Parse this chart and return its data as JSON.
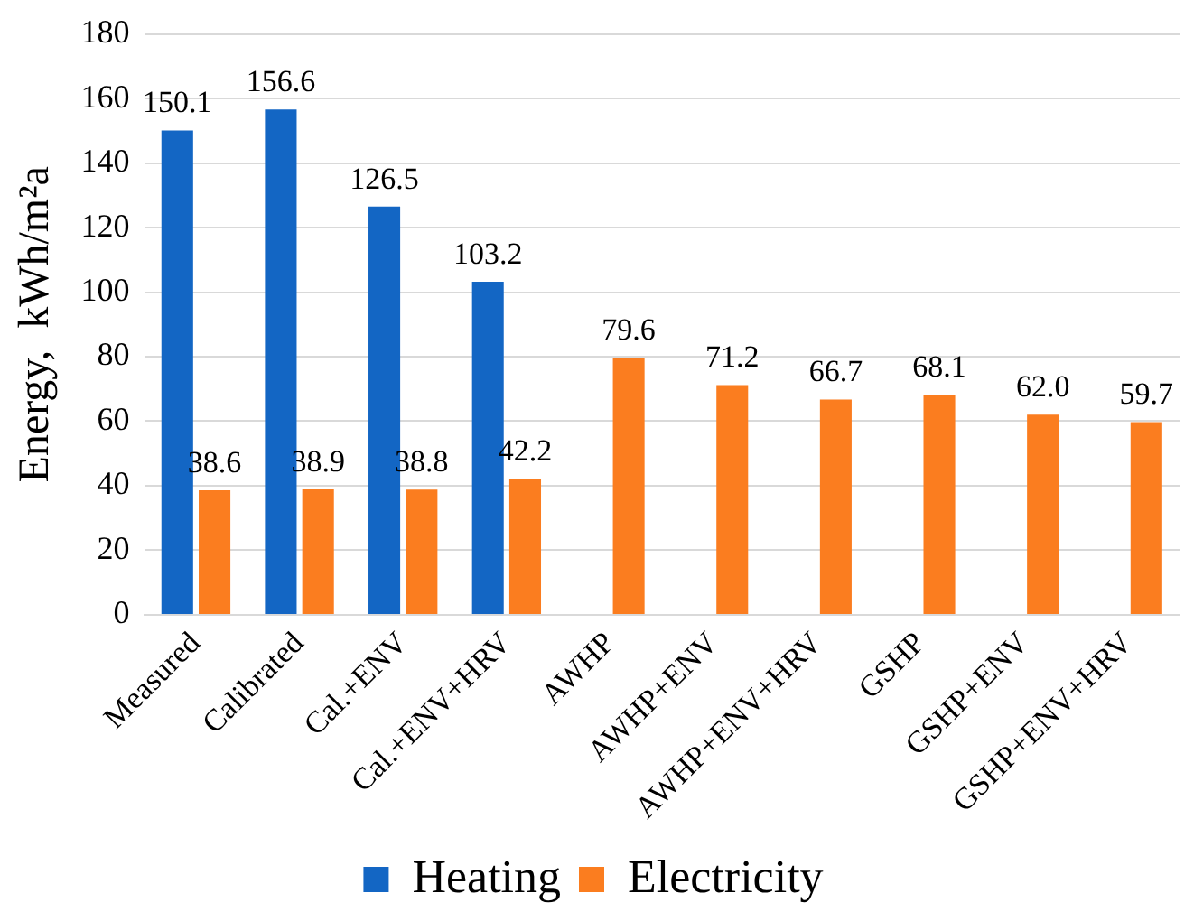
{
  "chart_data": {
    "type": "bar",
    "ylabel": "Energy,  kWh/m²a",
    "categories": [
      "Measured",
      "Calibrated",
      "Cal.+ENV",
      "Cal.+ENV+HRV",
      "AWHP",
      "AWHP+ENV",
      "AWHP+ENV+HRV",
      "GSHP",
      "GSHP+ENV",
      "GSHP+ENV+HRV"
    ],
    "series": [
      {
        "name": "Heating",
        "color": "#1366c4",
        "values": [
          150.1,
          156.6,
          126.5,
          103.2,
          null,
          null,
          null,
          null,
          null,
          null
        ],
        "value_labels": [
          "150.1",
          "156.6",
          "126.5",
          "103.2",
          null,
          null,
          null,
          null,
          null,
          null
        ]
      },
      {
        "name": "Electricity",
        "color": "#fb7d1f",
        "values": [
          38.6,
          38.9,
          38.8,
          42.2,
          79.6,
          71.2,
          66.7,
          68.1,
          62.0,
          59.7
        ],
        "value_labels": [
          "38.6",
          "38.9",
          "38.8",
          "42.2",
          "79.6",
          "71.2",
          "66.7",
          "68.1",
          "62.0",
          "59.7"
        ]
      }
    ],
    "ylim": [
      0,
      180
    ],
    "yticks": [
      0,
      20,
      40,
      60,
      80,
      100,
      120,
      140,
      160,
      180
    ],
    "grid": "y",
    "legend": "bottom"
  }
}
